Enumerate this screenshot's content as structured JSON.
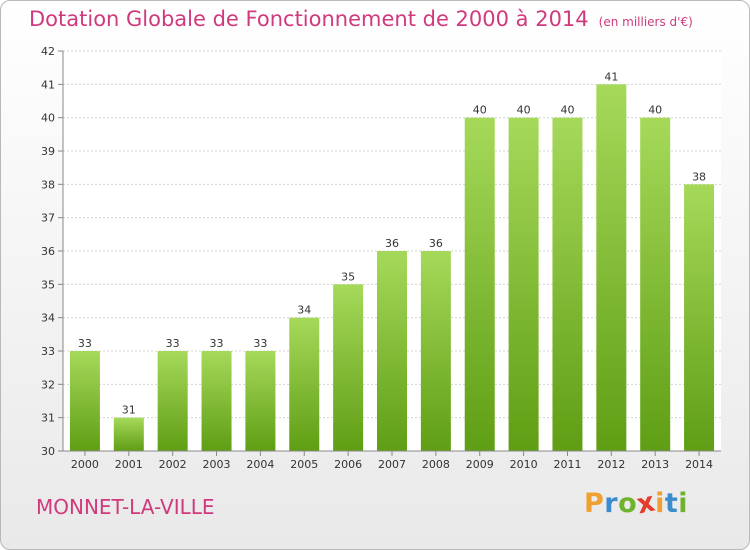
{
  "title": "Dotation Globale de Fonctionnement de 2000 à 2014",
  "subtitle": "(en milliers d'€)",
  "commune": "MONNET-LA-VILLE",
  "logo": {
    "letters": [
      "P",
      "r",
      "o",
      "x",
      "i",
      "t",
      "i"
    ],
    "colors": [
      "#f0a030",
      "#3a8ccc",
      "#6fb22e",
      "#e53b2b",
      "#f0a030",
      "#3a8ccc",
      "#6fb22e"
    ]
  },
  "colors": {
    "title": "#d03a7d",
    "bar_top": "#a6d95a",
    "bar_bottom": "#5f9e14",
    "axis_text": "#333333"
  },
  "chart_data": {
    "type": "bar",
    "categories": [
      "2000",
      "2001",
      "2002",
      "2003",
      "2004",
      "2005",
      "2006",
      "2007",
      "2008",
      "2009",
      "2010",
      "2011",
      "2012",
      "2013",
      "2014"
    ],
    "values": [
      33,
      31,
      33,
      33,
      33,
      34,
      35,
      36,
      36,
      40,
      40,
      40,
      41,
      40,
      38
    ],
    "ylim": [
      30,
      42
    ],
    "yticks": [
      30,
      31,
      32,
      33,
      34,
      35,
      36,
      37,
      38,
      39,
      40,
      41,
      42
    ],
    "grid": true,
    "data_labels": true
  }
}
